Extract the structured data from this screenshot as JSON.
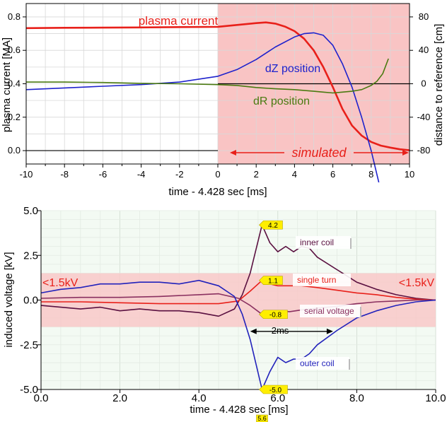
{
  "chart_data": [
    {
      "type": "line",
      "xlabel": "time - 4.428 sec [ms]",
      "ylabel": "plasma current [MA]",
      "y2label": "distance to reference [cm]",
      "xlim": [
        -10,
        10
      ],
      "ylim": [
        -0.08,
        0.88
      ],
      "y2lim": [
        -96,
        96
      ],
      "xticks": [
        "-10",
        "-8",
        "-6",
        "-4",
        "-2",
        "0",
        "2",
        "4",
        "6",
        "8",
        "10"
      ],
      "yticks": [
        "0.0",
        "0.2",
        "0.4",
        "0.6",
        "0.8"
      ],
      "y2ticks": [
        "80",
        "40",
        "0",
        "-40",
        "-80"
      ],
      "grid": true,
      "shaded_region": {
        "x": [
          0,
          10
        ],
        "label": "simulated",
        "color": "#f9c4c4"
      },
      "series": [
        {
          "name": "plasma current",
          "axis": "left",
          "color": "#e8201a",
          "x": [
            -10,
            -8,
            -6,
            -4,
            -2,
            0,
            1,
            2,
            2.5,
            3,
            3.5,
            4,
            4.5,
            5,
            5.5,
            6,
            6.5,
            7,
            7.5,
            8,
            8.5,
            9,
            9.5,
            10
          ],
          "y": [
            0.733,
            0.735,
            0.736,
            0.737,
            0.739,
            0.741,
            0.752,
            0.763,
            0.767,
            0.76,
            0.742,
            0.715,
            0.67,
            0.6,
            0.5,
            0.38,
            0.25,
            0.15,
            0.09,
            0.052,
            0.03,
            0.018,
            0.008,
            0.002
          ]
        },
        {
          "name": "dZ position",
          "axis": "right",
          "color": "#1e22cc",
          "x": [
            -10,
            -8,
            -6,
            -4,
            -2,
            0,
            1,
            2,
            3,
            4,
            4.5,
            5,
            5.5,
            6,
            6.5,
            7,
            7.5,
            8,
            8.4
          ],
          "y": [
            -7,
            -5,
            -3,
            -1,
            2,
            9,
            17,
            29,
            44,
            56,
            60,
            61,
            58,
            46,
            24,
            -4,
            -40,
            -80,
            -118
          ]
        },
        {
          "name": "dR position",
          "axis": "right",
          "color": "#4a7a10",
          "x": [
            -10,
            -8,
            -6,
            -4,
            -2,
            0,
            1,
            2,
            3,
            4,
            5,
            5.5,
            6,
            6.5,
            7,
            7.5,
            8,
            8.3,
            8.6,
            8.9
          ],
          "y": [
            2,
            2,
            1.5,
            0.5,
            0,
            -1,
            -2,
            -4.5,
            -6,
            -7,
            -9,
            -10,
            -11,
            -10,
            -9,
            -7,
            -2,
            3,
            12,
            30
          ]
        }
      ],
      "annotations": [
        "plasma current",
        "dZ position",
        "dR position",
        "simulated"
      ]
    },
    {
      "type": "line",
      "xlabel": "time - 4.428 sec [ms]",
      "ylabel": "induced voltage [kV]",
      "xlim": [
        0,
        10
      ],
      "ylim": [
        -5,
        5
      ],
      "xticks": [
        "0.0",
        "2.0",
        "4.0",
        "6.0",
        "8.0",
        "10.0"
      ],
      "yticks": [
        "5.0",
        "2.5",
        "0.0",
        "-2.5",
        "-5.0"
      ],
      "grid": true,
      "threshold_band": {
        "y": [
          -1.5,
          1.5
        ],
        "label_left": "<1.5kV",
        "label_right": "<1.5kV",
        "color": "#f8c8c8"
      },
      "series": [
        {
          "name": "inner coil",
          "color": "#5a1040",
          "x": [
            0,
            0.5,
            1,
            1.5,
            2,
            2.5,
            3,
            3.5,
            4,
            4.5,
            4.9,
            5.1,
            5.3,
            5.6,
            5.8,
            6.0,
            6.2,
            6.4,
            6.6,
            6.8,
            7.0,
            7.5,
            8,
            8.5,
            9,
            9.5,
            10
          ],
          "y": [
            -0.3,
            -0.4,
            -0.5,
            -0.4,
            -0.6,
            -0.5,
            -0.6,
            -0.6,
            -0.7,
            -0.9,
            -0.5,
            0.3,
            1.5,
            4.2,
            3.2,
            2.7,
            3.0,
            2.7,
            3.0,
            2.9,
            2.4,
            1.7,
            1.0,
            0.6,
            0.3,
            0.1,
            0.0
          ]
        },
        {
          "name": "single turn",
          "color": "#e8201a",
          "x": [
            0,
            1,
            2,
            3,
            4,
            4.5,
            5.0,
            5.3,
            5.6,
            5.8,
            6.0,
            6.3,
            6.6,
            7.0,
            7.5,
            8,
            8.5,
            9,
            9.5,
            10
          ],
          "y": [
            -0.1,
            -0.1,
            -0.15,
            -0.2,
            -0.2,
            -0.2,
            -0.05,
            0.5,
            1.1,
            0.9,
            0.8,
            0.8,
            0.8,
            0.7,
            0.55,
            0.4,
            0.3,
            0.15,
            0.05,
            0.0
          ]
        },
        {
          "name": "serial voltage",
          "color": "#8a3060",
          "x": [
            0,
            1,
            2,
            3,
            4,
            4.5,
            5.0,
            5.3,
            5.6,
            5.8,
            6.0,
            6.3,
            6.6,
            7.0,
            7.5,
            8,
            8.5,
            9,
            9.5,
            10
          ],
          "y": [
            0.1,
            0.15,
            0.15,
            0.2,
            0.3,
            0.35,
            0.1,
            -0.3,
            -0.8,
            -0.7,
            -0.6,
            -0.65,
            -0.55,
            -0.45,
            -0.35,
            -0.2,
            -0.1,
            -0.05,
            0.0,
            0.0
          ]
        },
        {
          "name": "outer coil",
          "color": "#2222bb",
          "x": [
            0,
            0.5,
            1,
            1.5,
            2,
            2.5,
            3,
            3.5,
            4,
            4.5,
            4.9,
            5.1,
            5.3,
            5.6,
            5.8,
            6.0,
            6.2,
            6.4,
            6.6,
            6.8,
            7.0,
            7.5,
            8,
            8.5,
            9,
            9.5,
            10
          ],
          "y": [
            0.4,
            0.6,
            0.7,
            0.9,
            0.9,
            1.0,
            1.0,
            0.9,
            1.1,
            0.8,
            0.2,
            -0.8,
            -2.2,
            -5.0,
            -4.0,
            -3.2,
            -3.5,
            -3.3,
            -3.3,
            -3.0,
            -2.5,
            -1.7,
            -1.0,
            -0.6,
            -0.3,
            -0.1,
            0.0
          ]
        }
      ],
      "peak_labels": [
        {
          "x": 5.6,
          "y": 4.2,
          "text": "4.2"
        },
        {
          "x": 5.6,
          "y": 1.1,
          "text": "1.1"
        },
        {
          "x": 5.6,
          "y": -0.8,
          "text": "-0.8"
        },
        {
          "x": 5.6,
          "y": -5.0,
          "text": "-5.0"
        }
      ],
      "x_marker_label": {
        "x": 5.6,
        "text": "5.6"
      },
      "span_arrow": {
        "x": [
          5.3,
          7.4
        ],
        "y": -1.75,
        "label": "2ms"
      },
      "annotations": [
        "inner coil",
        "single turn",
        "serial voltage",
        "outer coil"
      ]
    }
  ]
}
